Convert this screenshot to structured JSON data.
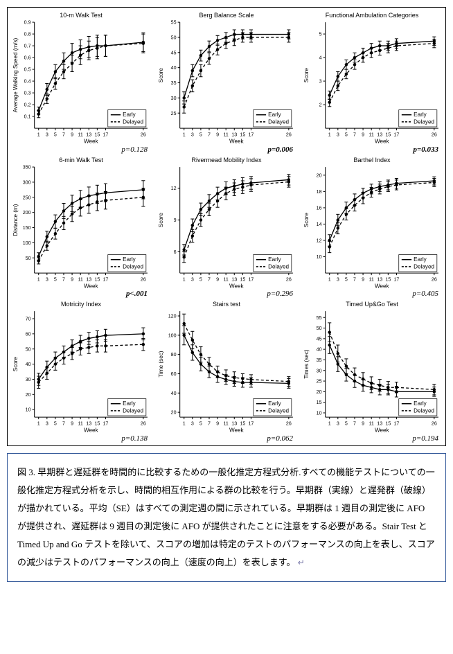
{
  "figure": {
    "weeks": [
      1,
      3,
      5,
      7,
      9,
      11,
      13,
      15,
      17,
      26
    ],
    "xlabel": "Week",
    "xlim": [
      0,
      27
    ],
    "xticks": [
      1,
      3,
      5,
      7,
      9,
      11,
      13,
      15,
      17,
      26
    ],
    "legend": {
      "early": "Early",
      "delayed": "Delayed"
    },
    "colors": {
      "line": "#000000",
      "axis": "#000000",
      "grid": "#ffffff",
      "bg": "#ffffff",
      "title": "#000000"
    },
    "font": {
      "title_pt": 9,
      "axis_pt": 8,
      "tick_pt": 7,
      "legend_pt": 8
    },
    "line_width": 1.3,
    "marker_size": 2.2,
    "err_cap": 2.5,
    "panels": [
      {
        "key": "walk10m",
        "title": "10-m Walk Test",
        "ylabel": "Average Walking Speed (m/s)",
        "ylim": [
          0,
          0.9
        ],
        "yticks": [
          0.1,
          0.2,
          0.3,
          0.4,
          0.5,
          0.6,
          0.7,
          0.8,
          0.9
        ],
        "early": {
          "y": [
            0.15,
            0.33,
            0.48,
            0.57,
            0.64,
            0.67,
            0.69,
            0.7,
            0.7,
            0.73
          ],
          "se": [
            0.03,
            0.05,
            0.06,
            0.07,
            0.08,
            0.08,
            0.09,
            0.09,
            0.09,
            0.08
          ]
        },
        "delayed": {
          "y": [
            0.12,
            0.25,
            0.38,
            0.48,
            0.55,
            0.62,
            0.66,
            0.68,
            0.7,
            0.72
          ],
          "se": [
            0.03,
            0.04,
            0.05,
            0.06,
            0.07,
            0.08,
            0.08,
            0.09,
            0.09,
            0.08
          ]
        },
        "legend_pos": "br",
        "pval": "p=0.128",
        "pbold": false
      },
      {
        "key": "berg",
        "title": "Berg Balance Scale",
        "ylabel": "Score",
        "ylim": [
          20,
          55
        ],
        "yticks": [
          25,
          30,
          35,
          40,
          45,
          50,
          55
        ],
        "early": {
          "y": [
            30,
            39,
            44,
            47,
            49,
            50,
            51,
            51,
            51,
            51
          ],
          "se": [
            2.0,
            2.0,
            1.8,
            1.8,
            1.6,
            1.6,
            1.5,
            1.5,
            1.5,
            1.5
          ]
        },
        "delayed": {
          "y": [
            27,
            34,
            39,
            43,
            46,
            48,
            49,
            50,
            50,
            50
          ],
          "se": [
            2.0,
            2.0,
            2.0,
            1.9,
            1.8,
            1.7,
            1.7,
            1.6,
            1.6,
            1.6
          ]
        },
        "legend_pos": "br",
        "pval": "p=0.006",
        "pbold": true
      },
      {
        "key": "fac",
        "title": "Functional Ambulation Categories",
        "ylabel": "Score",
        "ylim": [
          1,
          5.5
        ],
        "yticks": [
          2,
          3,
          4,
          5
        ],
        "early": {
          "y": [
            2.4,
            3.2,
            3.7,
            4.0,
            4.2,
            4.4,
            4.5,
            4.5,
            4.6,
            4.7
          ],
          "se": [
            0.18,
            0.2,
            0.2,
            0.2,
            0.2,
            0.2,
            0.2,
            0.2,
            0.2,
            0.18
          ]
        },
        "delayed": {
          "y": [
            2.1,
            2.8,
            3.3,
            3.7,
            4.0,
            4.2,
            4.3,
            4.4,
            4.5,
            4.6
          ],
          "se": [
            0.18,
            0.2,
            0.2,
            0.2,
            0.2,
            0.2,
            0.2,
            0.2,
            0.2,
            0.18
          ]
        },
        "legend_pos": "br",
        "pval": "p=0.033",
        "pbold": true
      },
      {
        "key": "walk6min",
        "title": "6-min Walk Test",
        "ylabel": "Distance (m)",
        "ylim": [
          0,
          350
        ],
        "yticks": [
          50,
          100,
          150,
          200,
          250,
          300,
          350
        ],
        "early": {
          "y": [
            55,
            120,
            170,
            205,
            230,
            245,
            255,
            260,
            265,
            275
          ],
          "se": [
            12,
            18,
            22,
            25,
            27,
            28,
            29,
            30,
            30,
            30
          ]
        },
        "delayed": {
          "y": [
            40,
            90,
            130,
            165,
            195,
            215,
            225,
            235,
            240,
            250
          ],
          "se": [
            10,
            15,
            18,
            22,
            25,
            27,
            28,
            29,
            29,
            30
          ]
        },
        "legend_pos": "br",
        "pval": "p<.001",
        "pbold": true
      },
      {
        "key": "rmi",
        "title": "Rivermead Mobility Index",
        "ylabel": "Score",
        "ylim": [
          4,
          14
        ],
        "yticks": [
          6,
          9,
          12
        ],
        "early": {
          "y": [
            6.2,
            8.5,
            10.0,
            10.8,
            11.5,
            12.0,
            12.2,
            12.4,
            12.5,
            12.8
          ],
          "se": [
            0.5,
            0.6,
            0.6,
            0.6,
            0.6,
            0.6,
            0.6,
            0.6,
            0.6,
            0.5
          ]
        },
        "delayed": {
          "y": [
            5.5,
            7.5,
            9.0,
            10.0,
            10.8,
            11.5,
            11.9,
            12.1,
            12.3,
            12.6
          ],
          "se": [
            0.5,
            0.6,
            0.6,
            0.6,
            0.6,
            0.6,
            0.6,
            0.6,
            0.6,
            0.5
          ]
        },
        "legend_pos": "br",
        "pval": "p=0.296",
        "pbold": false
      },
      {
        "key": "barthel",
        "title": "Barthel Index",
        "ylabel": "Score",
        "ylim": [
          8,
          21
        ],
        "yticks": [
          10,
          12,
          14,
          16,
          18,
          20
        ],
        "early": {
          "y": [
            12.0,
            14.5,
            16.0,
            17.0,
            17.8,
            18.3,
            18.6,
            18.8,
            19.0,
            19.3
          ],
          "se": [
            0.7,
            0.7,
            0.7,
            0.7,
            0.6,
            0.6,
            0.6,
            0.6,
            0.6,
            0.5
          ]
        },
        "delayed": {
          "y": [
            11.2,
            13.5,
            15.2,
            16.3,
            17.2,
            17.9,
            18.3,
            18.6,
            18.8,
            19.1
          ],
          "se": [
            0.7,
            0.7,
            0.7,
            0.7,
            0.7,
            0.6,
            0.6,
            0.6,
            0.6,
            0.5
          ]
        },
        "legend_pos": "br",
        "pval": "p=0.405",
        "pbold": false
      },
      {
        "key": "motricity",
        "title": "Motricity Index",
        "ylabel": "Score",
        "ylim": [
          5,
          75
        ],
        "yticks": [
          10,
          20,
          30,
          40,
          50,
          60,
          70
        ],
        "early": {
          "y": [
            30,
            38,
            44,
            48,
            52,
            55,
            57,
            58,
            59,
            60
          ],
          "se": [
            4,
            4,
            4,
            4,
            4,
            4,
            4,
            4,
            4,
            4
          ]
        },
        "delayed": {
          "y": [
            28,
            34,
            40,
            44,
            47,
            50,
            51,
            52,
            52,
            53
          ],
          "se": [
            4,
            4,
            4,
            4,
            4,
            4,
            4,
            4,
            4,
            4
          ]
        },
        "legend_pos": "br",
        "pval": "p=0.138",
        "pbold": false
      },
      {
        "key": "stairs",
        "title": "Stairs test",
        "ylabel": "Time (sec)",
        "ylim": [
          15,
          125
        ],
        "yticks": [
          20,
          40,
          60,
          80,
          100,
          120
        ],
        "early": {
          "y": [
            100,
            82,
            70,
            62,
            57,
            54,
            52,
            51,
            51,
            50
          ],
          "se": [
            10,
            8,
            7,
            6,
            6,
            5,
            5,
            5,
            5,
            5
          ]
        },
        "delayed": {
          "y": [
            112,
            95,
            80,
            70,
            62,
            58,
            56,
            55,
            54,
            52
          ],
          "se": [
            10,
            9,
            8,
            7,
            6,
            6,
            6,
            5,
            5,
            5
          ]
        },
        "legend_pos": "br",
        "pval": "p=0.062",
        "pbold": false
      },
      {
        "key": "tug",
        "title": "Timed Up&Go Test",
        "ylabel": "Times (sec)",
        "ylim": [
          8,
          58
        ],
        "yticks": [
          10,
          15,
          20,
          25,
          30,
          35,
          40,
          45,
          50,
          55
        ],
        "early": {
          "y": [
            42,
            33,
            28,
            25,
            23,
            22,
            21,
            21,
            20,
            20
          ],
          "se": [
            4,
            3.5,
            3,
            3,
            2.8,
            2.5,
            2.5,
            2.5,
            2.5,
            2.2
          ]
        },
        "delayed": {
          "y": [
            48,
            38,
            32,
            28,
            26,
            24,
            23,
            22,
            22,
            21
          ],
          "se": [
            4.5,
            4,
            3.5,
            3.2,
            3,
            3,
            2.8,
            2.8,
            2.5,
            2.5
          ]
        },
        "legend_pos": "br",
        "pval": "p=0.194",
        "pbold": false
      }
    ]
  },
  "caption": {
    "label": "図 3.",
    "text": "早期群と遅延群を時間的に比較するための一般化推定方程式分析.すべての機能テストについての一般化推定方程式分析を示し、時間的相互作用による群の比較を行う。早期群（実線）と遅発群（破線）が描かれている。平均（SE）はすべての測定週の間に示されている。早期群は 1 週目の測定後に AFO が提供され、遅延群は 9 週目の測定後に AFO が提供されたことに注意をする必要がある。Stair Test と Timed Up and Go テストを除いて、スコアの増加は特定のテストのパフォーマンスの向上を表し、スコアの減少はテストのパフォーマンスの向上（速度の向上）を表します。"
  }
}
